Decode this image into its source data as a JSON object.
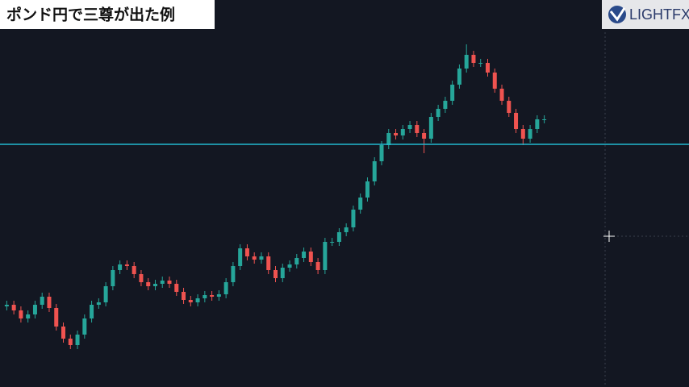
{
  "chart_data": {
    "type": "candlestick",
    "title": "ポンド円で三尊が出た例",
    "brand": "LIGHTFX",
    "ylim": [
      0,
      480
    ],
    "up_color": "#26a69a",
    "down_color": "#ef5350",
    "hline": {
      "value": 301,
      "color": "#22b8cf"
    },
    "open": [
      100,
      102,
      95,
      85,
      90,
      102,
      112,
      98,
      75,
      60,
      52,
      65,
      85,
      102,
      105,
      125,
      145,
      152,
      150,
      140,
      130,
      125,
      128,
      132,
      128,
      118,
      108,
      105,
      110,
      114,
      112,
      115,
      130,
      150,
      172,
      162,
      158,
      162,
      145,
      135,
      148,
      152,
      160,
      168,
      155,
      145,
      180,
      180,
      192,
      198,
      220,
      235,
      255,
      280,
      300,
      315,
      312,
      320,
      325,
      315,
      308,
      335,
      345,
      355,
      375,
      395,
      412,
      402,
      402,
      390,
      370,
      355,
      340,
      320,
      308,
      320,
      332
    ],
    "high": [
      107,
      107,
      100,
      95,
      107,
      117,
      117,
      103,
      80,
      65,
      70,
      90,
      107,
      110,
      130,
      150,
      157,
      157,
      155,
      145,
      135,
      133,
      137,
      137,
      133,
      123,
      113,
      115,
      119,
      119,
      120,
      135,
      155,
      177,
      177,
      167,
      167,
      167,
      150,
      153,
      157,
      165,
      173,
      173,
      160,
      185,
      185,
      197,
      203,
      225,
      240,
      260,
      285,
      305,
      320,
      320,
      325,
      330,
      330,
      320,
      340,
      350,
      360,
      380,
      400,
      425,
      417,
      407,
      407,
      395,
      375,
      360,
      345,
      325,
      325,
      337,
      337
    ],
    "low": [
      95,
      90,
      80,
      80,
      85,
      97,
      93,
      70,
      55,
      47,
      47,
      60,
      80,
      97,
      100,
      120,
      140,
      145,
      135,
      125,
      120,
      120,
      123,
      123,
      113,
      103,
      100,
      100,
      105,
      107,
      107,
      110,
      125,
      145,
      157,
      153,
      153,
      140,
      130,
      130,
      143,
      147,
      155,
      150,
      140,
      140,
      175,
      175,
      187,
      193,
      215,
      230,
      250,
      275,
      295,
      307,
      307,
      315,
      310,
      290,
      303,
      330,
      340,
      350,
      370,
      390,
      397,
      397,
      385,
      365,
      350,
      335,
      315,
      300,
      303,
      315,
      327
    ],
    "close": [
      102,
      95,
      85,
      90,
      102,
      112,
      98,
      75,
      60,
      52,
      65,
      85,
      102,
      105,
      125,
      145,
      152,
      150,
      140,
      130,
      125,
      128,
      132,
      128,
      118,
      108,
      105,
      110,
      114,
      112,
      115,
      130,
      150,
      172,
      162,
      158,
      162,
      145,
      135,
      148,
      152,
      160,
      168,
      155,
      145,
      180,
      180,
      192,
      198,
      220,
      235,
      255,
      280,
      300,
      315,
      312,
      320,
      325,
      315,
      308,
      335,
      345,
      355,
      375,
      395,
      412,
      402,
      402,
      390,
      370,
      355,
      340,
      320,
      308,
      320,
      332,
      332
    ]
  }
}
